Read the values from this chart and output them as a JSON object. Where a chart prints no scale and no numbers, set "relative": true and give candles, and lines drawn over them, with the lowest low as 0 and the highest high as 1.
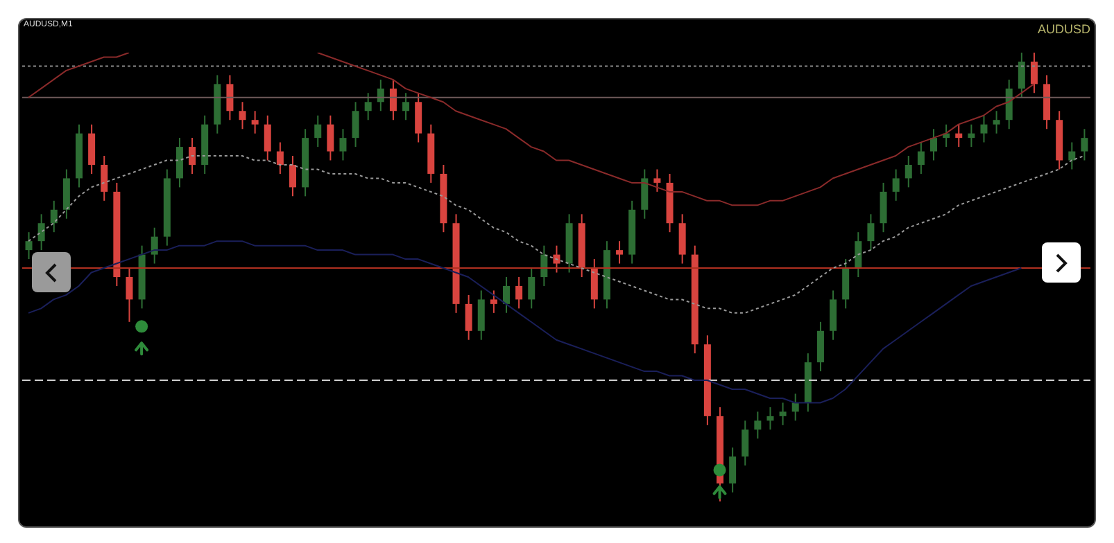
{
  "chart_data": {
    "type": "candlestick",
    "relative": true,
    "title": "AUDUSD",
    "subtitle": "AUDUSD,M1",
    "categories": [
      null,
      null,
      null,
      null,
      null,
      null,
      null,
      null,
      null,
      null,
      null,
      null,
      null,
      null,
      null,
      null,
      null,
      null,
      null,
      null,
      null,
      null,
      null,
      null,
      null,
      null,
      null,
      null,
      null,
      null,
      null,
      null,
      null,
      null,
      null,
      null,
      null,
      null,
      null,
      null,
      null,
      null,
      null,
      null,
      null,
      null,
      null,
      null,
      null,
      null,
      null,
      null,
      null,
      null,
      null,
      null,
      null,
      null,
      null,
      null,
      null,
      null,
      null,
      null,
      null,
      null,
      null,
      null,
      null,
      null,
      null,
      null,
      null,
      null,
      null,
      null,
      null,
      null,
      null,
      null,
      null,
      null,
      null,
      null,
      null
    ],
    "ohlc": [
      [
        0.56,
        0.6,
        0.54,
        0.58
      ],
      [
        0.58,
        0.64,
        0.56,
        0.62
      ],
      [
        0.62,
        0.67,
        0.6,
        0.65
      ],
      [
        0.65,
        0.74,
        0.63,
        0.72
      ],
      [
        0.72,
        0.84,
        0.7,
        0.82
      ],
      [
        0.82,
        0.84,
        0.73,
        0.75
      ],
      [
        0.75,
        0.77,
        0.67,
        0.69
      ],
      [
        0.69,
        0.71,
        0.48,
        0.5
      ],
      [
        0.5,
        0.52,
        0.4,
        0.45
      ],
      [
        0.45,
        0.57,
        0.43,
        0.55
      ],
      [
        0.55,
        0.61,
        0.53,
        0.59
      ],
      [
        0.59,
        0.74,
        0.57,
        0.72
      ],
      [
        0.72,
        0.81,
        0.7,
        0.79
      ],
      [
        0.79,
        0.81,
        0.73,
        0.75
      ],
      [
        0.75,
        0.86,
        0.73,
        0.84
      ],
      [
        0.84,
        0.95,
        0.82,
        0.93
      ],
      [
        0.93,
        0.95,
        0.85,
        0.87
      ],
      [
        0.87,
        0.89,
        0.83,
        0.85
      ],
      [
        0.85,
        0.87,
        0.82,
        0.84
      ],
      [
        0.84,
        0.86,
        0.76,
        0.78
      ],
      [
        0.78,
        0.8,
        0.73,
        0.75
      ],
      [
        0.75,
        0.77,
        0.68,
        0.7
      ],
      [
        0.7,
        0.83,
        0.68,
        0.81
      ],
      [
        0.81,
        0.86,
        0.79,
        0.84
      ],
      [
        0.84,
        0.86,
        0.76,
        0.78
      ],
      [
        0.78,
        0.83,
        0.76,
        0.81
      ],
      [
        0.81,
        0.89,
        0.79,
        0.87
      ],
      [
        0.87,
        0.91,
        0.85,
        0.89
      ],
      [
        0.89,
        0.94,
        0.87,
        0.92
      ],
      [
        0.92,
        0.94,
        0.85,
        0.87
      ],
      [
        0.87,
        0.91,
        0.85,
        0.89
      ],
      [
        0.89,
        0.91,
        0.8,
        0.82
      ],
      [
        0.82,
        0.84,
        0.71,
        0.73
      ],
      [
        0.73,
        0.75,
        0.6,
        0.62
      ],
      [
        0.62,
        0.64,
        0.42,
        0.44
      ],
      [
        0.44,
        0.46,
        0.36,
        0.38
      ],
      [
        0.38,
        0.47,
        0.36,
        0.45
      ],
      [
        0.45,
        0.47,
        0.42,
        0.44
      ],
      [
        0.44,
        0.5,
        0.42,
        0.48
      ],
      [
        0.48,
        0.5,
        0.43,
        0.45
      ],
      [
        0.45,
        0.52,
        0.43,
        0.5
      ],
      [
        0.5,
        0.57,
        0.48,
        0.55
      ],
      [
        0.55,
        0.57,
        0.51,
        0.53
      ],
      [
        0.53,
        0.64,
        0.51,
        0.62
      ],
      [
        0.62,
        0.64,
        0.5,
        0.52
      ],
      [
        0.52,
        0.54,
        0.43,
        0.45
      ],
      [
        0.45,
        0.58,
        0.43,
        0.56
      ],
      [
        0.56,
        0.58,
        0.53,
        0.55
      ],
      [
        0.55,
        0.67,
        0.53,
        0.65
      ],
      [
        0.65,
        0.74,
        0.63,
        0.72
      ],
      [
        0.72,
        0.74,
        0.69,
        0.71
      ],
      [
        0.71,
        0.73,
        0.6,
        0.62
      ],
      [
        0.62,
        0.64,
        0.53,
        0.55
      ],
      [
        0.55,
        0.57,
        0.33,
        0.35
      ],
      [
        0.35,
        0.37,
        0.17,
        0.19
      ],
      [
        0.19,
        0.21,
        0,
        0.04
      ],
      [
        0.04,
        0.12,
        0.02,
        0.1
      ],
      [
        0.1,
        0.18,
        0.08,
        0.16
      ],
      [
        0.16,
        0.2,
        0.14,
        0.18
      ],
      [
        0.18,
        0.21,
        0.16,
        0.19
      ],
      [
        0.19,
        0.22,
        0.17,
        0.2
      ],
      [
        0.2,
        0.24,
        0.18,
        0.22
      ],
      [
        0.22,
        0.33,
        0.2,
        0.31
      ],
      [
        0.31,
        0.4,
        0.29,
        0.38
      ],
      [
        0.38,
        0.47,
        0.36,
        0.45
      ],
      [
        0.45,
        0.54,
        0.43,
        0.52
      ],
      [
        0.52,
        0.6,
        0.5,
        0.58
      ],
      [
        0.58,
        0.64,
        0.56,
        0.62
      ],
      [
        0.62,
        0.71,
        0.6,
        0.69
      ],
      [
        0.69,
        0.74,
        0.67,
        0.72
      ],
      [
        0.72,
        0.77,
        0.7,
        0.75
      ],
      [
        0.75,
        0.8,
        0.73,
        0.78
      ],
      [
        0.78,
        0.83,
        0.76,
        0.81
      ],
      [
        0.81,
        0.84,
        0.79,
        0.82
      ],
      [
        0.82,
        0.84,
        0.79,
        0.81
      ],
      [
        0.81,
        0.84,
        0.79,
        0.82
      ],
      [
        0.82,
        0.86,
        0.8,
        0.84
      ],
      [
        0.84,
        0.87,
        0.82,
        0.85
      ],
      [
        0.85,
        0.94,
        0.83,
        0.92
      ],
      [
        0.92,
        1,
        0.9,
        0.98
      ],
      [
        0.98,
        1,
        0.91,
        0.93
      ],
      [
        0.93,
        0.95,
        0.83,
        0.85
      ],
      [
        0.85,
        0.87,
        0.74,
        0.76
      ],
      [
        0.76,
        0.8,
        0.74,
        0.78
      ],
      [
        0.78,
        0.83,
        0.76,
        0.81
      ]
    ],
    "series": [
      {
        "type": "line",
        "color": "#8a2a2a",
        "values": [
          0.9,
          0.92,
          0.94,
          0.96,
          0.97,
          0.98,
          0.99,
          0.99,
          1,
          null,
          null,
          null,
          null,
          null,
          null,
          null,
          null,
          null,
          null,
          null,
          null,
          null,
          null,
          1,
          0.99,
          0.98,
          0.97,
          0.96,
          0.95,
          0.94,
          0.92,
          0.91,
          0.9,
          0.89,
          0.87,
          0.86,
          0.85,
          0.84,
          0.83,
          0.81,
          0.79,
          0.78,
          0.76,
          0.76,
          0.75,
          0.74,
          0.73,
          0.72,
          0.71,
          0.71,
          0.7,
          0.69,
          0.69,
          0.68,
          0.67,
          0.67,
          0.66,
          0.66,
          0.66,
          0.67,
          0.67,
          0.68,
          0.69,
          0.7,
          0.72,
          0.73,
          0.74,
          0.75,
          0.76,
          0.77,
          0.79,
          0.8,
          0.81,
          0.82,
          0.84,
          0.85,
          0.86,
          0.88,
          0.89,
          0.91,
          0.93,
          null,
          null,
          null,
          null
        ]
      },
      {
        "type": "line",
        "color": "#9a9a9a",
        "line_style": "dotted",
        "values": [
          0.58,
          0.6,
          0.62,
          0.65,
          0.68,
          0.7,
          0.71,
          0.72,
          0.73,
          0.74,
          0.75,
          0.76,
          0.76,
          0.77,
          0.77,
          0.77,
          0.77,
          0.77,
          0.76,
          0.76,
          0.75,
          0.75,
          0.74,
          0.74,
          0.73,
          0.73,
          0.73,
          0.72,
          0.72,
          0.71,
          0.71,
          0.7,
          0.69,
          0.68,
          0.66,
          0.65,
          0.63,
          0.61,
          0.6,
          0.58,
          0.57,
          0.55,
          0.54,
          0.53,
          0.52,
          0.51,
          0.5,
          0.49,
          0.48,
          0.47,
          0.46,
          0.45,
          0.45,
          0.44,
          0.43,
          0.43,
          0.42,
          0.42,
          0.43,
          0.44,
          0.45,
          0.46,
          0.48,
          0.5,
          0.52,
          0.53,
          0.55,
          0.56,
          0.58,
          0.59,
          0.61,
          0.62,
          0.63,
          0.64,
          0.66,
          0.67,
          0.68,
          0.69,
          0.7,
          0.71,
          0.72,
          0.73,
          0.74,
          0.76,
          0.77
        ]
      },
      {
        "type": "line",
        "color": "#1a1f5a",
        "values": [
          0.42,
          0.43,
          0.45,
          0.46,
          0.48,
          0.51,
          0.52,
          0.53,
          0.54,
          0.55,
          0.56,
          0.56,
          0.57,
          0.57,
          0.57,
          0.58,
          0.58,
          0.58,
          0.57,
          0.57,
          0.57,
          0.57,
          0.57,
          0.56,
          0.56,
          0.56,
          0.55,
          0.55,
          0.55,
          0.55,
          0.54,
          0.54,
          0.53,
          0.52,
          0.51,
          0.5,
          0.48,
          0.46,
          0.44,
          0.42,
          0.4,
          0.38,
          0.36,
          0.35,
          0.34,
          0.33,
          0.32,
          0.31,
          0.3,
          0.29,
          0.29,
          0.28,
          0.28,
          0.27,
          0.27,
          0.26,
          0.25,
          0.25,
          0.24,
          0.23,
          0.23,
          0.22,
          0.22,
          0.22,
          0.23,
          0.25,
          0.28,
          0.31,
          0.34,
          0.36,
          0.38,
          0.4,
          0.42,
          0.44,
          0.46,
          0.48,
          0.49,
          0.5,
          0.51,
          0.52,
          null,
          null,
          null,
          null,
          null
        ]
      },
      {
        "type": "scatter",
        "color": "#2e8b3a",
        "marker": "circle",
        "values": [
          null,
          null,
          null,
          null,
          null,
          null,
          null,
          null,
          null,
          0.39,
          null,
          null,
          null,
          null,
          null,
          null,
          null,
          null,
          null,
          null,
          null,
          null,
          null,
          null,
          null,
          null,
          null,
          null,
          null,
          null,
          null,
          null,
          null,
          null,
          null,
          null,
          null,
          null,
          null,
          null,
          null,
          null,
          null,
          null,
          null,
          null,
          null,
          null,
          null,
          null,
          null,
          null,
          null,
          null,
          null,
          0.07,
          null,
          null,
          null,
          null,
          null,
          null,
          null,
          null,
          null,
          null,
          null,
          null,
          null,
          null,
          null,
          null,
          null,
          null,
          null,
          null,
          null,
          null,
          null,
          null,
          null,
          null,
          null,
          null,
          null
        ]
      }
    ],
    "ref_lines": [
      {
        "axis": "y",
        "value": 0.97,
        "color": "#8a8a8a",
        "line_style": "dotted"
      },
      {
        "axis": "y",
        "value": 0.9,
        "color": "#6e5a5a",
        "line_style": "solid"
      },
      {
        "axis": "y",
        "value": 0.52,
        "color": "#b03020",
        "line_style": "solid"
      },
      {
        "axis": "y",
        "value": 0.27,
        "color": "#cfcfcf",
        "line_style": "dashed"
      }
    ]
  }
}
